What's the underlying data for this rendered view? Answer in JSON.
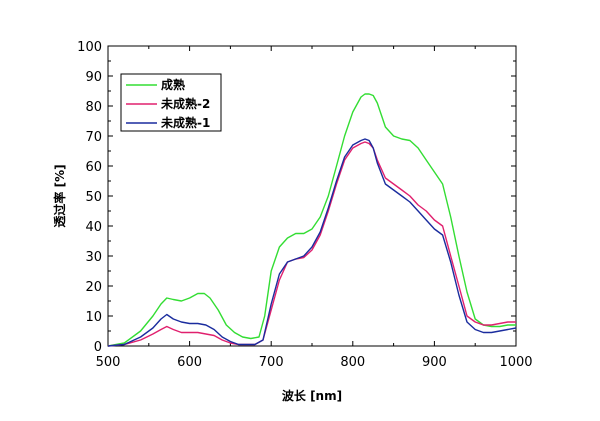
{
  "chart_data": {
    "type": "line",
    "xlabel": "波长 [nm]",
    "ylabel": "透过率 [%]",
    "xlim": [
      500,
      1000
    ],
    "ylim": [
      0,
      100
    ],
    "xticks": [
      500,
      600,
      700,
      800,
      900,
      1000
    ],
    "yticks": [
      0,
      10,
      20,
      30,
      40,
      50,
      60,
      70,
      80,
      90,
      100
    ],
    "grid": false,
    "legend_position": "top-left",
    "series": [
      {
        "name": "成熟",
        "color": "#33dd33",
        "x": [
          500,
          520,
          540,
          555,
          565,
          572,
          580,
          590,
          600,
          610,
          618,
          625,
          635,
          645,
          655,
          665,
          675,
          685,
          692,
          700,
          710,
          720,
          730,
          740,
          750,
          760,
          770,
          780,
          790,
          800,
          810,
          815,
          820,
          825,
          830,
          840,
          850,
          860,
          870,
          880,
          890,
          900,
          910,
          920,
          930,
          940,
          950,
          960,
          970,
          980,
          990,
          1000
        ],
        "y": [
          0,
          1,
          5,
          10,
          14,
          16,
          15.5,
          15,
          16,
          17.5,
          17.5,
          16,
          12,
          7,
          4.5,
          3,
          2.5,
          3,
          10,
          25,
          33,
          36,
          37.5,
          37.5,
          39,
          43,
          50,
          60,
          70,
          78,
          83,
          84,
          84,
          83.5,
          81,
          73,
          70,
          69,
          68.5,
          66,
          62,
          58,
          54,
          43,
          30,
          18,
          9,
          7,
          6.5,
          6.5,
          7,
          7
        ]
      },
      {
        "name": "未成熟-2",
        "color": "#e0206e",
        "x": [
          500,
          520,
          540,
          555,
          565,
          572,
          580,
          590,
          600,
          610,
          620,
          630,
          640,
          650,
          660,
          670,
          680,
          690,
          700,
          710,
          720,
          730,
          740,
          750,
          760,
          770,
          780,
          790,
          800,
          810,
          815,
          820,
          825,
          830,
          840,
          850,
          860,
          870,
          880,
          890,
          900,
          910,
          920,
          930,
          940,
          950,
          960,
          970,
          980,
          990,
          1000
        ],
        "y": [
          0,
          0.5,
          2,
          4,
          5.5,
          6.5,
          5.5,
          4.5,
          4.5,
          4.5,
          4,
          3.5,
          2,
          1,
          0.5,
          0.5,
          0.5,
          2,
          12,
          22,
          28,
          29,
          29.5,
          32,
          37,
          45,
          54,
          62,
          66,
          67.5,
          68,
          67.5,
          66,
          62,
          56,
          54,
          52,
          50,
          47,
          45,
          42,
          40,
          30,
          20,
          10,
          8,
          7,
          7,
          7.5,
          8,
          8
        ]
      },
      {
        "name": "未成熟-1",
        "color": "#1a2c9e",
        "x": [
          500,
          520,
          540,
          555,
          565,
          572,
          580,
          590,
          600,
          610,
          620,
          630,
          640,
          650,
          660,
          670,
          680,
          690,
          700,
          710,
          720,
          730,
          740,
          750,
          760,
          770,
          780,
          790,
          800,
          810,
          815,
          820,
          825,
          830,
          840,
          850,
          860,
          870,
          880,
          890,
          900,
          910,
          920,
          930,
          940,
          950,
          960,
          970,
          980,
          990,
          1000
        ],
        "y": [
          0,
          0.5,
          3,
          6,
          9,
          10.5,
          9,
          8,
          7.5,
          7.5,
          7,
          5.5,
          3,
          1.5,
          0.5,
          0.5,
          0.5,
          2,
          14,
          24,
          28,
          29,
          30,
          33,
          38,
          46,
          55,
          63,
          67,
          68.5,
          69,
          68.5,
          66,
          61,
          54,
          52,
          50,
          48,
          45,
          42,
          39,
          37,
          28,
          17,
          8,
          5.5,
          4.5,
          4.5,
          5,
          5.5,
          6
        ]
      }
    ]
  }
}
